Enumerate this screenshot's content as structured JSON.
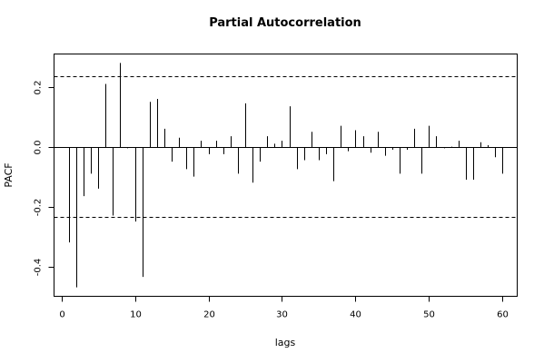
{
  "chart_data": {
    "type": "bar",
    "title": "Partial Autocorrelation",
    "xlabel": "lags",
    "ylabel": "PACF",
    "xlim": [
      -1,
      62
    ],
    "ylim": [
      -0.5,
      0.31
    ],
    "x_ticks": [
      0,
      10,
      20,
      30,
      40,
      50,
      60
    ],
    "y_ticks": [
      -0.4,
      -0.2,
      0.0,
      0.2
    ],
    "y_tick_labels": [
      "-0.4",
      "-0.2",
      "0.0",
      "0.2"
    ],
    "confidence_band": [
      -0.236,
      0.236
    ],
    "grid": false,
    "x": [
      1,
      2,
      3,
      4,
      5,
      6,
      7,
      8,
      9,
      10,
      11,
      12,
      13,
      14,
      15,
      16,
      17,
      18,
      19,
      20,
      21,
      22,
      23,
      24,
      25,
      26,
      27,
      28,
      29,
      30,
      31,
      32,
      33,
      34,
      35,
      36,
      37,
      38,
      39,
      40,
      41,
      42,
      43,
      44,
      45,
      46,
      47,
      48,
      49,
      50,
      51,
      52,
      53,
      54,
      55,
      56,
      57,
      58,
      59,
      60
    ],
    "values": [
      -0.32,
      -0.47,
      -0.165,
      -0.09,
      -0.14,
      0.21,
      -0.23,
      0.28,
      -0.005,
      -0.25,
      -0.435,
      0.15,
      0.16,
      0.06,
      -0.05,
      0.03,
      -0.075,
      -0.1,
      0.02,
      -0.025,
      0.02,
      -0.025,
      0.035,
      -0.09,
      0.145,
      -0.12,
      -0.05,
      0.035,
      0.01,
      0.02,
      0.135,
      -0.075,
      -0.045,
      0.05,
      -0.045,
      -0.025,
      -0.115,
      0.07,
      -0.015,
      0.055,
      0.035,
      -0.02,
      0.05,
      -0.03,
      -0.01,
      -0.09,
      -0.01,
      0.06,
      -0.09,
      0.07,
      0.035,
      -0.005,
      0.0,
      0.02,
      -0.11,
      -0.11,
      0.015,
      0.005,
      -0.035,
      -0.09
    ]
  }
}
